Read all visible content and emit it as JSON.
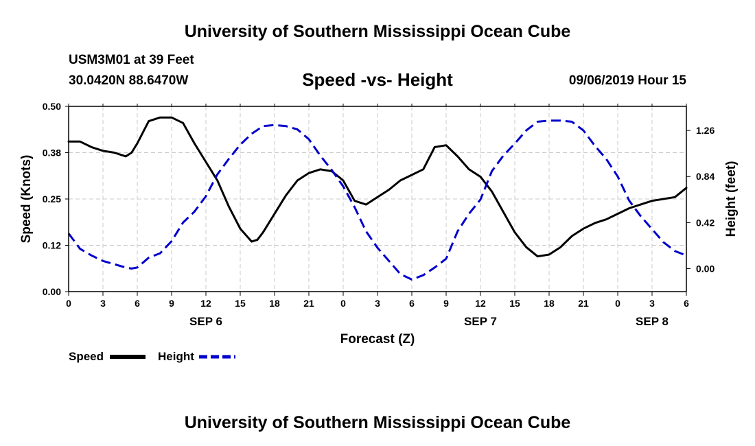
{
  "header": {
    "title": "University of Southern Mississippi Ocean Cube",
    "station": "USM3M01 at 39 Feet",
    "coords": "30.0420N 88.6470W",
    "chart_title": "Speed -vs- Height",
    "datetime": "09/06/2019 Hour 15"
  },
  "footer": {
    "title": "University of Southern Mississippi Ocean Cube"
  },
  "legend": {
    "speed_label": "Speed",
    "height_label": "Height"
  },
  "colors": {
    "speed": "#000000",
    "height": "#0000cc",
    "grid": "#c8c8c8"
  },
  "chart_data": {
    "type": "line",
    "title": "Speed -vs- Height",
    "xlabel": "Forecast (Z)",
    "ylabel_left": "Speed (Knots)",
    "ylabel_right": "Height (feet)",
    "x_range_hours": [
      0,
      54
    ],
    "x_tick_labels": [
      "0",
      "3",
      "6",
      "9",
      "12",
      "15",
      "18",
      "21",
      "0",
      "3",
      "6",
      "9",
      "12",
      "15",
      "18",
      "21",
      "0",
      "3",
      "6"
    ],
    "date_labels": [
      {
        "label": "SEP 6",
        "x": 12
      },
      {
        "label": "SEP 7",
        "x": 36
      },
      {
        "label": "SEP 8",
        "x": 51
      }
    ],
    "y_left": {
      "range": [
        0.0,
        0.5
      ],
      "ticks": [
        0.0,
        0.125,
        0.25,
        0.375,
        0.5
      ],
      "tick_labels": [
        "0.00",
        "0.12",
        "0.25",
        "0.38",
        "0.50"
      ]
    },
    "y_right": {
      "range": [
        -0.21,
        1.48
      ],
      "ticks": [
        0.0,
        0.42,
        0.84,
        1.26
      ],
      "tick_labels": [
        "0.00",
        "0.42",
        "0.84",
        "1.26"
      ]
    },
    "series": [
      {
        "name": "Speed",
        "axis": "left",
        "style": "solid",
        "x": [
          0,
          1,
          2,
          3,
          4,
          5,
          5.5,
          6,
          7,
          8,
          9,
          10,
          11,
          12,
          13,
          14,
          15,
          16,
          16.5,
          17,
          18,
          19,
          20,
          21,
          22,
          23,
          24,
          25,
          26,
          27,
          28,
          29,
          30,
          31,
          32,
          33,
          34,
          35,
          36,
          37,
          38,
          39,
          40,
          41,
          42,
          43,
          44,
          45,
          46,
          47,
          48,
          49,
          50,
          51,
          52,
          53,
          54
        ],
        "values": [
          0.405,
          0.405,
          0.39,
          0.38,
          0.375,
          0.365,
          0.375,
          0.4,
          0.46,
          0.47,
          0.47,
          0.455,
          0.4,
          0.35,
          0.3,
          0.23,
          0.17,
          0.135,
          0.14,
          0.16,
          0.21,
          0.26,
          0.3,
          0.32,
          0.33,
          0.325,
          0.3,
          0.245,
          0.235,
          0.255,
          0.275,
          0.3,
          0.315,
          0.33,
          0.39,
          0.395,
          0.365,
          0.33,
          0.31,
          0.27,
          0.215,
          0.16,
          0.12,
          0.095,
          0.1,
          0.12,
          0.15,
          0.17,
          0.185,
          0.195,
          0.21,
          0.225,
          0.235,
          0.245,
          0.25,
          0.255,
          0.28
        ]
      },
      {
        "name": "Height",
        "axis": "right",
        "style": "dashed",
        "x": [
          0,
          1,
          2,
          3,
          4,
          5,
          5.5,
          6,
          7,
          8,
          9,
          10,
          11,
          12,
          13,
          14,
          15,
          16,
          17,
          18,
          19,
          20,
          21,
          22,
          23,
          24,
          25,
          26,
          27,
          28,
          29,
          30,
          31,
          32,
          33,
          34,
          35,
          36,
          37,
          38,
          39,
          40,
          41,
          42,
          43,
          44,
          45,
          46,
          47,
          48,
          49,
          50,
          51,
          52,
          53,
          54
        ],
        "values": [
          0.32,
          0.18,
          0.12,
          0.07,
          0.04,
          0.01,
          0.0,
          0.01,
          0.1,
          0.14,
          0.25,
          0.42,
          0.52,
          0.66,
          0.86,
          1.0,
          1.13,
          1.23,
          1.3,
          1.31,
          1.3,
          1.27,
          1.18,
          1.03,
          0.9,
          0.75,
          0.56,
          0.34,
          0.19,
          0.07,
          -0.05,
          -0.1,
          -0.06,
          0.01,
          0.09,
          0.34,
          0.5,
          0.63,
          0.89,
          1.03,
          1.14,
          1.26,
          1.34,
          1.35,
          1.35,
          1.34,
          1.26,
          1.12,
          1.0,
          0.84,
          0.62,
          0.48,
          0.36,
          0.24,
          0.16,
          0.12
        ]
      }
    ]
  }
}
